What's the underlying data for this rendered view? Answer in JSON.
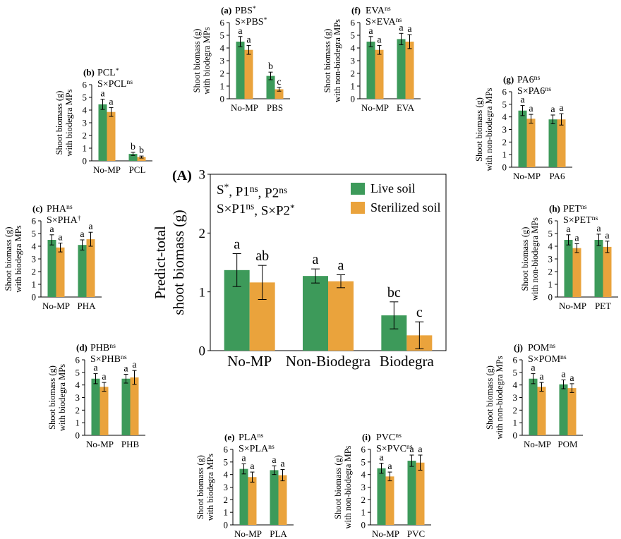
{
  "chart_data": [
    {
      "type": "bar",
      "panel_label": "(A)",
      "title_lines": [
        [
          {
            "text": "S",
            "sup": "*"
          },
          {
            "text": ", P1",
            "sup": "ns"
          },
          {
            "text": ", P2",
            "sup": "ns"
          }
        ],
        [
          {
            "text": "S×P1",
            "sup": "ns"
          },
          {
            "text": ", S×P2",
            "sup": "*"
          }
        ]
      ],
      "ylabel": [
        "Predict-total",
        "shoot biomass (g)"
      ],
      "categories": [
        "No-MP",
        "Non-Biodegra",
        "Biodegra"
      ],
      "series": [
        {
          "name": "Live soil",
          "color": "#3d9a5a",
          "values": [
            1.37,
            1.27,
            0.6
          ],
          "errors": [
            0.28,
            0.12,
            0.23
          ],
          "letters": [
            "a",
            "a",
            "bc"
          ]
        },
        {
          "name": "Sterilized soil",
          "color": "#eaa33c",
          "values": [
            1.16,
            1.18,
            0.26
          ],
          "errors": [
            0.29,
            0.11,
            0.23
          ],
          "letters": [
            "ab",
            "a",
            "c"
          ]
        }
      ],
      "ylim": [
        0,
        3
      ],
      "yticks": [
        0,
        1,
        2,
        3
      ]
    },
    {
      "type": "bar",
      "panel_label": "(a)",
      "title_lines": [
        [
          {
            "text": "PBS",
            "sup": "*"
          }
        ],
        [
          {
            "text": "S×PBS",
            "sup": "*"
          }
        ]
      ],
      "ylabel": [
        "Shoot biomass (g)",
        "with biodegra MPs"
      ],
      "categories": [
        "No-MP",
        "PBS"
      ],
      "series": [
        {
          "color": "#3d9a5a",
          "values": [
            4.5,
            1.8
          ],
          "errors": [
            0.4,
            0.3
          ],
          "letters": [
            "a",
            "b"
          ]
        },
        {
          "color": "#eaa33c",
          "values": [
            3.85,
            0.75
          ],
          "errors": [
            0.35,
            0.15
          ],
          "letters": [
            "a",
            "c"
          ]
        }
      ],
      "ylim": [
        0,
        6
      ],
      "yticks": [
        0,
        1,
        2,
        3,
        4,
        5,
        6
      ]
    },
    {
      "type": "bar",
      "panel_label": "(b)",
      "title_lines": [
        [
          {
            "text": "PCL",
            "sup": "*"
          }
        ],
        [
          {
            "text": "S×PCL",
            "sup": "ns"
          }
        ]
      ],
      "ylabel": [
        "Shoot biomass (g)",
        "with biodegra MPs"
      ],
      "categories": [
        "No-MP",
        "PCL"
      ],
      "series": [
        {
          "color": "#3d9a5a",
          "values": [
            4.45,
            0.55
          ],
          "errors": [
            0.4,
            0.12
          ],
          "letters": [
            "a",
            "b"
          ]
        },
        {
          "color": "#eaa33c",
          "values": [
            3.85,
            0.3
          ],
          "errors": [
            0.35,
            0.08
          ],
          "letters": [
            "a",
            "b"
          ]
        }
      ],
      "ylim": [
        0,
        6
      ],
      "yticks": [
        0,
        1,
        2,
        3,
        4,
        5,
        6
      ]
    },
    {
      "type": "bar",
      "panel_label": "(c)",
      "title_lines": [
        [
          {
            "text": "PHA",
            "sup": "ns"
          }
        ],
        [
          {
            "text": "S×PHA",
            "sup": "†"
          }
        ]
      ],
      "ylabel": [
        "Shoot biomass (g)",
        "with biodegra MPs"
      ],
      "categories": [
        "No-MP",
        "PHA"
      ],
      "series": [
        {
          "color": "#3d9a5a",
          "values": [
            4.5,
            4.1
          ],
          "errors": [
            0.4,
            0.4
          ],
          "letters": [
            "a",
            "a"
          ]
        },
        {
          "color": "#eaa33c",
          "values": [
            3.9,
            4.55
          ],
          "errors": [
            0.35,
            0.55
          ],
          "letters": [
            "a",
            "a"
          ]
        }
      ],
      "ylim": [
        0,
        6
      ],
      "yticks": [
        0,
        1,
        2,
        3,
        4,
        5,
        6
      ]
    },
    {
      "type": "bar",
      "panel_label": "(d)",
      "title_lines": [
        [
          {
            "text": "PHB",
            "sup": "ns"
          }
        ],
        [
          {
            "text": "S×PHB",
            "sup": "ns"
          }
        ]
      ],
      "ylabel": [
        "Shoot biomass (g)",
        "with biodegra MPs"
      ],
      "categories": [
        "No-MP",
        "PHB"
      ],
      "series": [
        {
          "color": "#3d9a5a",
          "values": [
            4.5,
            4.5
          ],
          "errors": [
            0.4,
            0.35
          ],
          "letters": [
            "a",
            "a"
          ]
        },
        {
          "color": "#eaa33c",
          "values": [
            3.85,
            4.6
          ],
          "errors": [
            0.35,
            0.55
          ],
          "letters": [
            "a",
            "a"
          ]
        }
      ],
      "ylim": [
        0,
        6
      ],
      "yticks": [
        0,
        1,
        2,
        3,
        4,
        5,
        6
      ]
    },
    {
      "type": "bar",
      "panel_label": "(e)",
      "title_lines": [
        [
          {
            "text": "PLA",
            "sup": "ns"
          }
        ],
        [
          {
            "text": "S×PLA",
            "sup": "ns"
          }
        ]
      ],
      "ylabel": [
        "Shoot biomass (g)",
        "with biodegra MPs"
      ],
      "categories": [
        "No-MP",
        "PLA"
      ],
      "series": [
        {
          "color": "#3d9a5a",
          "values": [
            4.45,
            4.35
          ],
          "errors": [
            0.4,
            0.35
          ],
          "letters": [
            "a",
            "a"
          ]
        },
        {
          "color": "#eaa33c",
          "values": [
            3.8,
            3.95
          ],
          "errors": [
            0.4,
            0.45
          ],
          "letters": [
            "a",
            "a"
          ]
        }
      ],
      "ylim": [
        0,
        6
      ],
      "yticks": [
        0,
        1,
        2,
        3,
        4,
        5,
        6
      ]
    },
    {
      "type": "bar",
      "panel_label": "(f)",
      "title_lines": [
        [
          {
            "text": "EVA",
            "sup": "ns"
          }
        ],
        [
          {
            "text": "S×EVA",
            "sup": "ns"
          }
        ]
      ],
      "ylabel": [
        "Shoot biomass (g)",
        "with non-biodegra MPs"
      ],
      "categories": [
        "No-MP",
        "EVA"
      ],
      "series": [
        {
          "color": "#3d9a5a",
          "values": [
            4.5,
            4.7
          ],
          "errors": [
            0.4,
            0.45
          ],
          "letters": [
            "a",
            "a"
          ]
        },
        {
          "color": "#eaa33c",
          "values": [
            3.85,
            4.5
          ],
          "errors": [
            0.35,
            0.55
          ],
          "letters": [
            "a",
            "a"
          ]
        }
      ],
      "ylim": [
        0,
        6
      ],
      "yticks": [
        0,
        1,
        2,
        3,
        4,
        5,
        6
      ]
    },
    {
      "type": "bar",
      "panel_label": "(g)",
      "title_lines": [
        [
          {
            "text": "PA6",
            "sup": "ns"
          }
        ],
        [
          {
            "text": "S×PA6",
            "sup": "ns"
          }
        ]
      ],
      "ylabel": [
        "Shoot biomass (g)",
        "with non-biodegra MPs"
      ],
      "categories": [
        "No-MP",
        "PA6"
      ],
      "series": [
        {
          "color": "#3d9a5a",
          "values": [
            4.5,
            3.8
          ],
          "errors": [
            0.4,
            0.35
          ],
          "letters": [
            "a",
            "a"
          ]
        },
        {
          "color": "#eaa33c",
          "values": [
            3.85,
            3.8
          ],
          "errors": [
            0.35,
            0.45
          ],
          "letters": [
            "a",
            "a"
          ]
        }
      ],
      "ylim": [
        0,
        6
      ],
      "yticks": [
        0,
        1,
        2,
        3,
        4,
        5,
        6
      ]
    },
    {
      "type": "bar",
      "panel_label": "(h)",
      "title_lines": [
        [
          {
            "text": "PET",
            "sup": "ns"
          }
        ],
        [
          {
            "text": "S×PET",
            "sup": "ns"
          }
        ]
      ],
      "ylabel": [
        "Shoot biomass (g)",
        "with non-biodegra MPs"
      ],
      "categories": [
        "No-MP",
        "PET"
      ],
      "series": [
        {
          "color": "#3d9a5a",
          "values": [
            4.5,
            4.5
          ],
          "errors": [
            0.4,
            0.45
          ],
          "letters": [
            "a",
            "a"
          ]
        },
        {
          "color": "#eaa33c",
          "values": [
            3.85,
            3.95
          ],
          "errors": [
            0.35,
            0.45
          ],
          "letters": [
            "a",
            "a"
          ]
        }
      ],
      "ylim": [
        0,
        6
      ],
      "yticks": [
        0,
        1,
        2,
        3,
        4,
        5,
        6
      ]
    },
    {
      "type": "bar",
      "panel_label": "(i)",
      "title_lines": [
        [
          {
            "text": "PVC",
            "sup": "ns"
          }
        ],
        [
          {
            "text": "S×PVC",
            "sup": "ns"
          }
        ]
      ],
      "ylabel": [
        "Shoot biomass (g)",
        "with non-biodegra MPs"
      ],
      "categories": [
        "No-MP",
        "PVC"
      ],
      "series": [
        {
          "color": "#3d9a5a",
          "values": [
            4.5,
            5.1
          ],
          "errors": [
            0.4,
            0.45
          ],
          "letters": [
            "a",
            "a"
          ]
        },
        {
          "color": "#eaa33c",
          "values": [
            3.85,
            4.95
          ],
          "errors": [
            0.35,
            0.6
          ],
          "letters": [
            "a",
            "a"
          ]
        }
      ],
      "ylim": [
        0,
        6
      ],
      "yticks": [
        0,
        1,
        2,
        3,
        4,
        5,
        6
      ]
    },
    {
      "type": "bar",
      "panel_label": "(j)",
      "title_lines": [
        [
          {
            "text": "POM",
            "sup": "ns"
          }
        ],
        [
          {
            "text": "S×POM",
            "sup": "ns"
          }
        ]
      ],
      "ylabel": [
        "Shoot biomass (g)",
        "with non-biodegra MPs"
      ],
      "categories": [
        "No-MP",
        "POM"
      ],
      "series": [
        {
          "color": "#3d9a5a",
          "values": [
            4.5,
            4.05
          ],
          "errors": [
            0.4,
            0.35
          ],
          "letters": [
            "a",
            "a"
          ]
        },
        {
          "color": "#eaa33c",
          "values": [
            3.85,
            3.75
          ],
          "errors": [
            0.35,
            0.35
          ],
          "letters": [
            "a",
            "a"
          ]
        }
      ],
      "ylim": [
        0,
        6
      ],
      "yticks": [
        0,
        1,
        2,
        3,
        4,
        5,
        6
      ]
    }
  ]
}
